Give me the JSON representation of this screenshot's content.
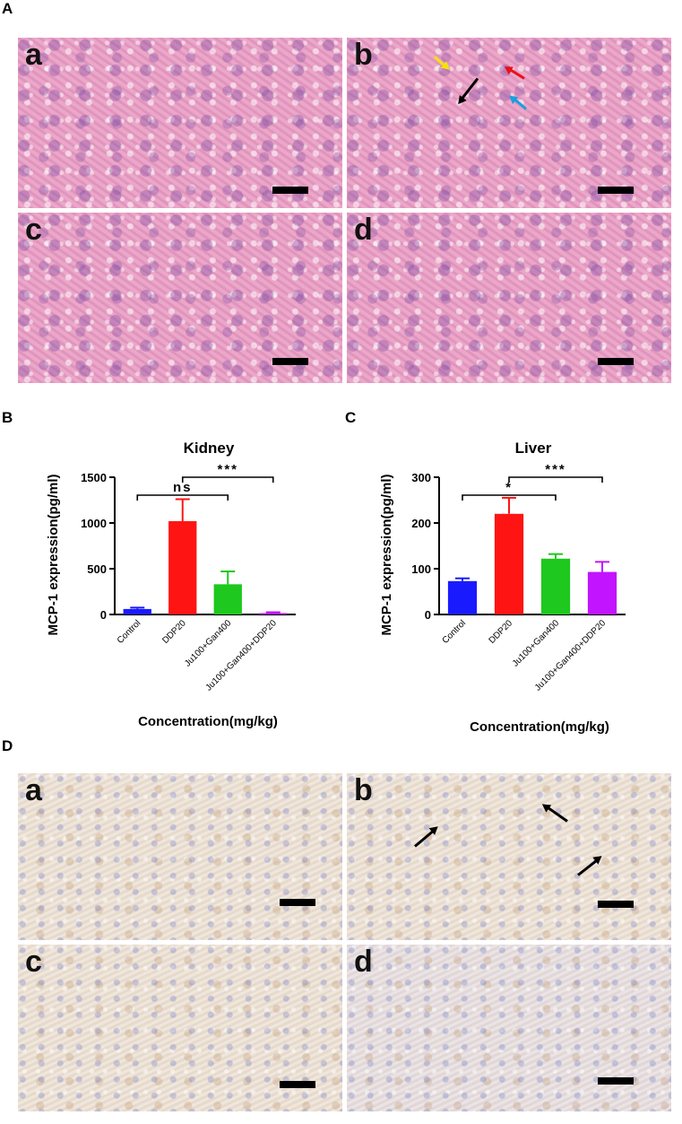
{
  "panels": {
    "A": "A",
    "B": "B",
    "C": "C",
    "D": "D"
  },
  "micrographs": {
    "A": [
      "a",
      "b",
      "c",
      "d"
    ],
    "D": [
      "a",
      "b",
      "c",
      "d"
    ]
  },
  "arrow_colors": {
    "yellow": "#f5e10a",
    "red": "#e8101a",
    "blue": "#1a9ee0",
    "black": "#000000"
  },
  "chart_data": [
    {
      "type": "bar",
      "title": "Kidney",
      "ylabel": "MCP-1 expression(pg/ml)",
      "xlabel": "Concentration(mg/kg)",
      "categories": [
        "Control",
        "DDP20",
        "Ju100+Gan400",
        "Ju100+Gan400+DDP20"
      ],
      "values": [
        60,
        1020,
        330,
        15
      ],
      "errors": [
        15,
        240,
        140,
        10
      ],
      "colors": [
        "#1a1aff",
        "#ff1414",
        "#1ec81e",
        "#c214ff"
      ],
      "ylim": [
        0,
        1500
      ],
      "yticks": [
        "0",
        "500",
        "1000",
        "1500"
      ],
      "significance": [
        {
          "from": 0,
          "to": 2,
          "label": "ns"
        },
        {
          "from": 1,
          "to": 3,
          "label": "***"
        }
      ]
    },
    {
      "type": "bar",
      "title": "Liver",
      "ylabel": "MCP-1 expression(pg/ml)",
      "xlabel": "Concentration(mg/kg)",
      "categories": [
        "Control",
        "DDP20",
        "Ju100+Gan400",
        "Ju100+Gan400+DDP20"
      ],
      "values": [
        73,
        220,
        122,
        93
      ],
      "errors": [
        6,
        35,
        10,
        22
      ],
      "colors": [
        "#1a1aff",
        "#ff1414",
        "#1ec81e",
        "#c214ff"
      ],
      "ylim": [
        0,
        300
      ],
      "yticks": [
        "0",
        "100",
        "200",
        "300"
      ],
      "significance": [
        {
          "from": 0,
          "to": 2,
          "label": "*"
        },
        {
          "from": 1,
          "to": 3,
          "label": "***"
        }
      ]
    }
  ]
}
